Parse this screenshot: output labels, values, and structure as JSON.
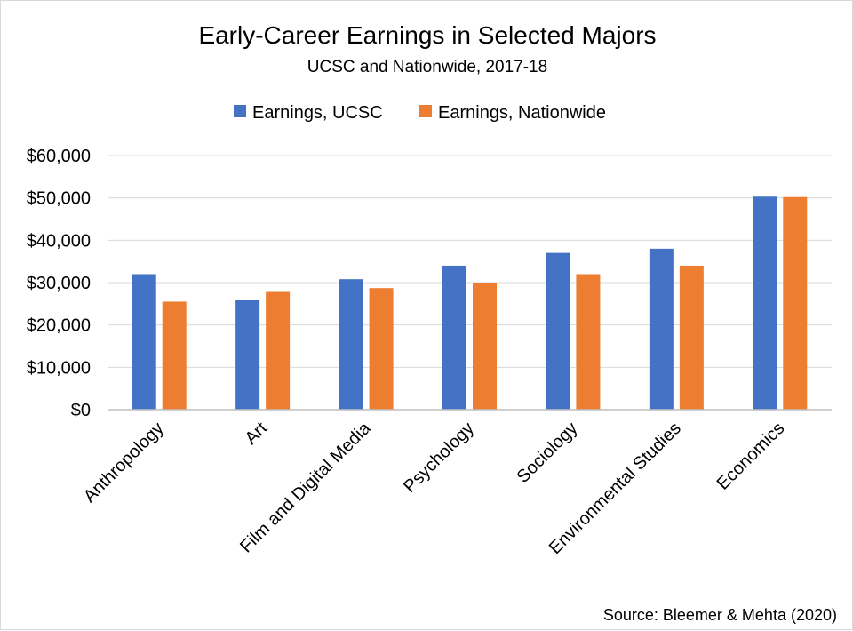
{
  "chart_data": {
    "type": "bar",
    "title": "Early-Career Earnings in Selected Majors",
    "subtitle": "UCSC and Nationwide, 2017-18",
    "categories": [
      "Anthropology",
      "Art",
      "Film and Digital Media",
      "Psychology",
      "Sociology",
      "Environmental Studies",
      "Economics"
    ],
    "series": [
      {
        "name": "Earnings, UCSC",
        "color": "#4472C4",
        "values": [
          32000,
          25800,
          30800,
          34000,
          37000,
          38000,
          50300
        ]
      },
      {
        "name": "Earnings, Nationwide",
        "color": "#ED7D31",
        "values": [
          25500,
          28000,
          28700,
          30000,
          32000,
          34000,
          50200
        ]
      }
    ],
    "ylim": [
      0,
      60000
    ],
    "yticks": [
      "$0",
      "$10,000",
      "$20,000",
      "$30,000",
      "$40,000",
      "$50,000",
      "$60,000"
    ],
    "ytick_values": [
      0,
      10000,
      20000,
      30000,
      40000,
      50000,
      60000
    ],
    "legend_position": "top",
    "grid": true,
    "source": "Source: Bleemer & Mehta (2020)"
  }
}
